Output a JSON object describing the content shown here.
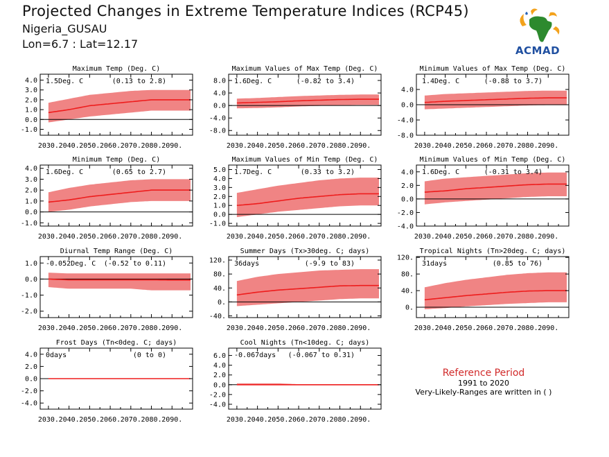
{
  "header": {
    "title": "Projected Changes in Extreme Temperature Indices (RCP45)",
    "location": "Nigeria_GUSAU",
    "coords": "Lon=6.7 : Lat=12.17"
  },
  "logo": {
    "text": "ACMAD"
  },
  "reference": {
    "title": "Reference Period",
    "period": "1991 to 2020",
    "note": "Very-Likely-Ranges are written in ( )"
  },
  "colors": {
    "median": "#ee1c1c",
    "band": "#f08484",
    "zero_line": "#000000",
    "frame": "#000000"
  },
  "x_ticks": [
    "2030.",
    "2040.",
    "2050.",
    "2060.",
    "2070.",
    "2080.",
    "2090."
  ],
  "chart_data": [
    {
      "id": "txx-mean",
      "type": "area",
      "title": "Maximum Temp (Deg. C)",
      "stat": "1.5Deg. C",
      "range": "(0.13 to 2.8)",
      "x": [
        2030,
        2040,
        2050,
        2060,
        2070,
        2080,
        2090
      ],
      "median": [
        0.7,
        1.0,
        1.4,
        1.6,
        1.8,
        2.0,
        2.0
      ],
      "lower": [
        -0.3,
        0.0,
        0.3,
        0.5,
        0.7,
        0.9,
        0.9
      ],
      "upper": [
        1.7,
        2.1,
        2.5,
        2.7,
        2.9,
        3.0,
        3.0
      ],
      "ylim": [
        -1.6,
        4.6
      ],
      "yticks": [
        -1.0,
        0.0,
        1.0,
        2.0,
        3.0,
        4.0
      ],
      "ytick_labels": [
        "-1.0",
        "0.0",
        "1.0",
        "2.0",
        "3.0",
        "4.0"
      ],
      "grid": false
    },
    {
      "id": "txx",
      "type": "area",
      "title": "Maximum Values of Max Temp (Deg. C)",
      "stat": "1.6Deg. C",
      "range": "(-0.82 to 3.4)",
      "x": [
        2030,
        2040,
        2050,
        2060,
        2070,
        2080,
        2090
      ],
      "median": [
        0.8,
        1.0,
        1.2,
        1.5,
        1.7,
        1.9,
        2.0
      ],
      "lower": [
        -0.9,
        -0.8,
        -0.6,
        -0.3,
        -0.1,
        0.1,
        0.2
      ],
      "upper": [
        2.2,
        2.4,
        2.7,
        3.0,
        3.2,
        3.4,
        3.5
      ],
      "ylim": [
        -9.5,
        10
      ],
      "yticks": [
        -8,
        -4,
        0,
        4,
        8
      ],
      "ytick_labels": [
        "-8.0",
        "-4.0",
        "0.0",
        "4.0",
        "8.0"
      ],
      "grid": false
    },
    {
      "id": "txn",
      "type": "area",
      "title": "Minimum Values of Max Temp (Deg. C)",
      "stat": "1.4Deg. C",
      "range": "(-0.88 to 3.7)",
      "x": [
        2030,
        2040,
        2050,
        2060,
        2070,
        2080,
        2090
      ],
      "median": [
        0.6,
        0.9,
        1.1,
        1.3,
        1.5,
        1.7,
        1.8
      ],
      "lower": [
        -1.2,
        -1.0,
        -0.8,
        -0.6,
        -0.4,
        -0.2,
        -0.1
      ],
      "upper": [
        2.4,
        2.8,
        3.0,
        3.2,
        3.4,
        3.6,
        3.7
      ],
      "ylim": [
        -8,
        8
      ],
      "yticks": [
        -8,
        -4,
        0,
        4
      ],
      "ytick_labels": [
        "-8.0",
        "-4.0",
        "0.0",
        "4.0"
      ],
      "grid": false
    },
    {
      "id": "tn-mean",
      "type": "area",
      "title": "Minimum Temp (Deg. C)",
      "stat": "1.6Deg. C",
      "range": "(0.65 to 2.7)",
      "x": [
        2030,
        2040,
        2050,
        2060,
        2070,
        2080,
        2090
      ],
      "median": [
        0.9,
        1.1,
        1.4,
        1.6,
        1.8,
        2.0,
        2.0
      ],
      "lower": [
        0.0,
        0.2,
        0.5,
        0.7,
        0.9,
        1.0,
        1.0
      ],
      "upper": [
        1.8,
        2.2,
        2.5,
        2.7,
        2.9,
        3.0,
        3.0
      ],
      "ylim": [
        -1.3,
        4.3
      ],
      "yticks": [
        -1.0,
        0.0,
        1.0,
        2.0,
        3.0,
        4.0
      ],
      "ytick_labels": [
        "-1.0",
        "0.0",
        "1.0",
        "2.0",
        "3.0",
        "4.0"
      ],
      "grid": false
    },
    {
      "id": "tnx",
      "type": "area",
      "title": "Maximum Values of Min Temp (Deg. C)",
      "stat": "1.7Deg. C",
      "range": "(0.33 to 3.2)",
      "x": [
        2030,
        2040,
        2050,
        2060,
        2070,
        2080,
        2090
      ],
      "median": [
        1.0,
        1.2,
        1.5,
        1.8,
        2.0,
        2.2,
        2.3
      ],
      "lower": [
        -0.3,
        0.0,
        0.3,
        0.5,
        0.7,
        0.9,
        1.0
      ],
      "upper": [
        2.4,
        2.8,
        3.2,
        3.5,
        3.8,
        4.0,
        4.1
      ],
      "ylim": [
        -1.3,
        5.5
      ],
      "yticks": [
        -1.0,
        0.0,
        1.0,
        2.0,
        3.0,
        4.0,
        5.0
      ],
      "ytick_labels": [
        "-1.0",
        "0.0",
        "1.0",
        "2.0",
        "3.0",
        "4.0",
        "5.0"
      ],
      "grid": false
    },
    {
      "id": "tnn",
      "type": "area",
      "title": "Minimum Values of Min Temp (Deg. C)",
      "stat": "1.6Deg. C",
      "range": "(-0.31 to 3.4)",
      "x": [
        2030,
        2040,
        2050,
        2060,
        2070,
        2080,
        2090
      ],
      "median": [
        1.0,
        1.2,
        1.5,
        1.7,
        1.9,
        2.1,
        2.2
      ],
      "lower": [
        -0.8,
        -0.5,
        -0.3,
        -0.1,
        0.1,
        0.3,
        0.4
      ],
      "upper": [
        2.6,
        3.0,
        3.2,
        3.4,
        3.6,
        3.8,
        3.9
      ],
      "ylim": [
        -4,
        5
      ],
      "yticks": [
        -4,
        -2,
        0,
        2,
        4
      ],
      "ytick_labels": [
        "-4.0",
        "-2.0",
        "0.0",
        "2.0",
        "4.0"
      ],
      "grid": false
    },
    {
      "id": "dtr",
      "type": "area",
      "title": "Diurnal Temp Range (Deg. C)",
      "stat": "-0.052Deg. C",
      "range": "(-0.52 to 0.11)",
      "x": [
        2030,
        2040,
        2050,
        2060,
        2070,
        2080,
        2090
      ],
      "median": [
        0.0,
        -0.05,
        -0.05,
        -0.05,
        -0.05,
        -0.05,
        -0.06
      ],
      "lower": [
        -0.5,
        -0.6,
        -0.6,
        -0.6,
        -0.6,
        -0.7,
        -0.7
      ],
      "upper": [
        0.4,
        0.35,
        0.35,
        0.35,
        0.35,
        0.35,
        0.35
      ],
      "ylim": [
        -2.4,
        1.4
      ],
      "yticks": [
        -2.0,
        -1.0,
        0.0,
        1.0
      ],
      "ytick_labels": [
        "-2.0",
        "-1.0",
        "0.0",
        "1.0"
      ],
      "grid": false
    },
    {
      "id": "su",
      "type": "area",
      "title": "Summer Days (Tx>30deg. C; days)",
      "stat": "36days",
      "range": "(-9.9 to 83)",
      "x": [
        2030,
        2040,
        2050,
        2060,
        2070,
        2080,
        2090
      ],
      "median": [
        20,
        28,
        34,
        38,
        42,
        46,
        47
      ],
      "lower": [
        -12,
        -8,
        -4,
        0,
        4,
        8,
        10
      ],
      "upper": [
        60,
        72,
        80,
        85,
        90,
        92,
        94
      ],
      "ylim": [
        -45,
        130
      ],
      "yticks": [
        -40,
        0,
        40,
        80,
        120
      ],
      "ytick_labels": [
        "-40.",
        "0.",
        "40.",
        "80.",
        "120."
      ],
      "grid": false
    },
    {
      "id": "tr",
      "type": "area",
      "title": "Tropical Nights (Tn>20deg. C; days)",
      "stat": "31days",
      "range": "(0.85 to 76)",
      "x": [
        2030,
        2040,
        2050,
        2060,
        2070,
        2080,
        2090
      ],
      "median": [
        18,
        23,
        28,
        32,
        36,
        39,
        40
      ],
      "lower": [
        -5,
        -2,
        2,
        5,
        8,
        10,
        12
      ],
      "upper": [
        48,
        58,
        66,
        72,
        78,
        82,
        84
      ],
      "ylim": [
        -25,
        122
      ],
      "yticks": [
        0,
        40,
        80,
        120
      ],
      "ytick_labels": [
        "0.",
        "40.",
        "80.",
        "120."
      ],
      "grid": false
    },
    {
      "id": "fd",
      "type": "area",
      "title": "Frost Days (Tn<0deg. C; days)",
      "stat": "0days",
      "range": "(0 to 0)",
      "x": [
        2030,
        2040,
        2050,
        2060,
        2070,
        2080,
        2090
      ],
      "median": [
        0,
        0,
        0,
        0,
        0,
        0,
        0
      ],
      "lower": [
        0,
        0,
        0,
        0,
        0,
        0,
        0
      ],
      "upper": [
        0,
        0,
        0,
        0,
        0,
        0,
        0
      ],
      "ylim": [
        -5,
        5
      ],
      "yticks": [
        -4,
        -2,
        0,
        2,
        4
      ],
      "ytick_labels": [
        "-4.0",
        "-2.0",
        "0.0",
        "2.0",
        "4.0"
      ],
      "grid": false
    },
    {
      "id": "cn",
      "type": "area",
      "title": "Cool Nights (Tn<10deg. C; days)",
      "stat": "-0.067days",
      "range": "(-0.067 to 0.31)",
      "x": [
        2030,
        2040,
        2050,
        2060,
        2070,
        2080,
        2090
      ],
      "median": [
        0,
        0,
        0,
        0,
        0,
        0,
        0
      ],
      "lower": [
        0,
        0,
        0,
        0,
        0,
        0,
        0
      ],
      "upper": [
        0.3,
        0.3,
        0.3,
        0.1,
        0.1,
        0.1,
        0.1
      ],
      "ylim": [
        -5,
        7.5
      ],
      "yticks": [
        -4,
        -2,
        0,
        2,
        4,
        6
      ],
      "ytick_labels": [
        "-4.0",
        "-2.0",
        "0.0",
        "2.0",
        "4.0",
        "6.0"
      ],
      "grid": false
    }
  ]
}
